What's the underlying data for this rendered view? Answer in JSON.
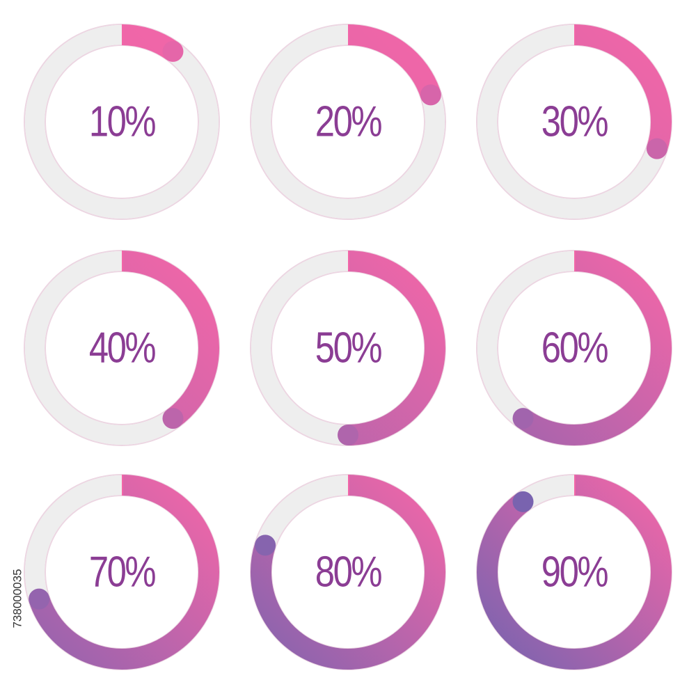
{
  "image_id": "738000035",
  "chart_data": [
    {
      "type": "donut",
      "values": [
        10
      ],
      "value_labels": [
        "10%"
      ],
      "ylim": [
        0,
        100
      ],
      "colors": [
        "#f266a8",
        "#6b63b0"
      ],
      "track_color": "#eeeeee",
      "label_color": "#8b3d94"
    },
    {
      "type": "donut",
      "values": [
        20
      ],
      "value_labels": [
        "20%"
      ],
      "ylim": [
        0,
        100
      ],
      "colors": [
        "#f266a8",
        "#6b63b0"
      ],
      "track_color": "#eeeeee",
      "label_color": "#8b3d94"
    },
    {
      "type": "donut",
      "values": [
        30
      ],
      "value_labels": [
        "30%"
      ],
      "ylim": [
        0,
        100
      ],
      "colors": [
        "#f266a8",
        "#6b63b0"
      ],
      "track_color": "#eeeeee",
      "label_color": "#8b3d94"
    },
    {
      "type": "donut",
      "values": [
        40
      ],
      "value_labels": [
        "40%"
      ],
      "ylim": [
        0,
        100
      ],
      "colors": [
        "#f266a8",
        "#6b63b0"
      ],
      "track_color": "#eeeeee",
      "label_color": "#8b3d94"
    },
    {
      "type": "donut",
      "values": [
        50
      ],
      "value_labels": [
        "50%"
      ],
      "ylim": [
        0,
        100
      ],
      "colors": [
        "#f266a8",
        "#6b63b0"
      ],
      "track_color": "#eeeeee",
      "label_color": "#8b3d94"
    },
    {
      "type": "donut",
      "values": [
        60
      ],
      "value_labels": [
        "60%"
      ],
      "ylim": [
        0,
        100
      ],
      "colors": [
        "#f266a8",
        "#6b63b0"
      ],
      "track_color": "#eeeeee",
      "label_color": "#8b3d94"
    },
    {
      "type": "donut",
      "values": [
        70
      ],
      "value_labels": [
        "70%"
      ],
      "ylim": [
        0,
        100
      ],
      "colors": [
        "#f266a8",
        "#6b63b0"
      ],
      "track_color": "#eeeeee",
      "label_color": "#8b3d94"
    },
    {
      "type": "donut",
      "values": [
        80
      ],
      "value_labels": [
        "80%"
      ],
      "ylim": [
        0,
        100
      ],
      "colors": [
        "#f266a8",
        "#6b63b0"
      ],
      "track_color": "#eeeeee",
      "label_color": "#8b3d94"
    },
    {
      "type": "donut",
      "values": [
        90
      ],
      "value_labels": [
        "90%"
      ],
      "ylim": [
        0,
        100
      ],
      "colors": [
        "#f266a8",
        "#6b63b0"
      ],
      "track_color": "#eeeeee",
      "label_color": "#8b3d94"
    }
  ]
}
